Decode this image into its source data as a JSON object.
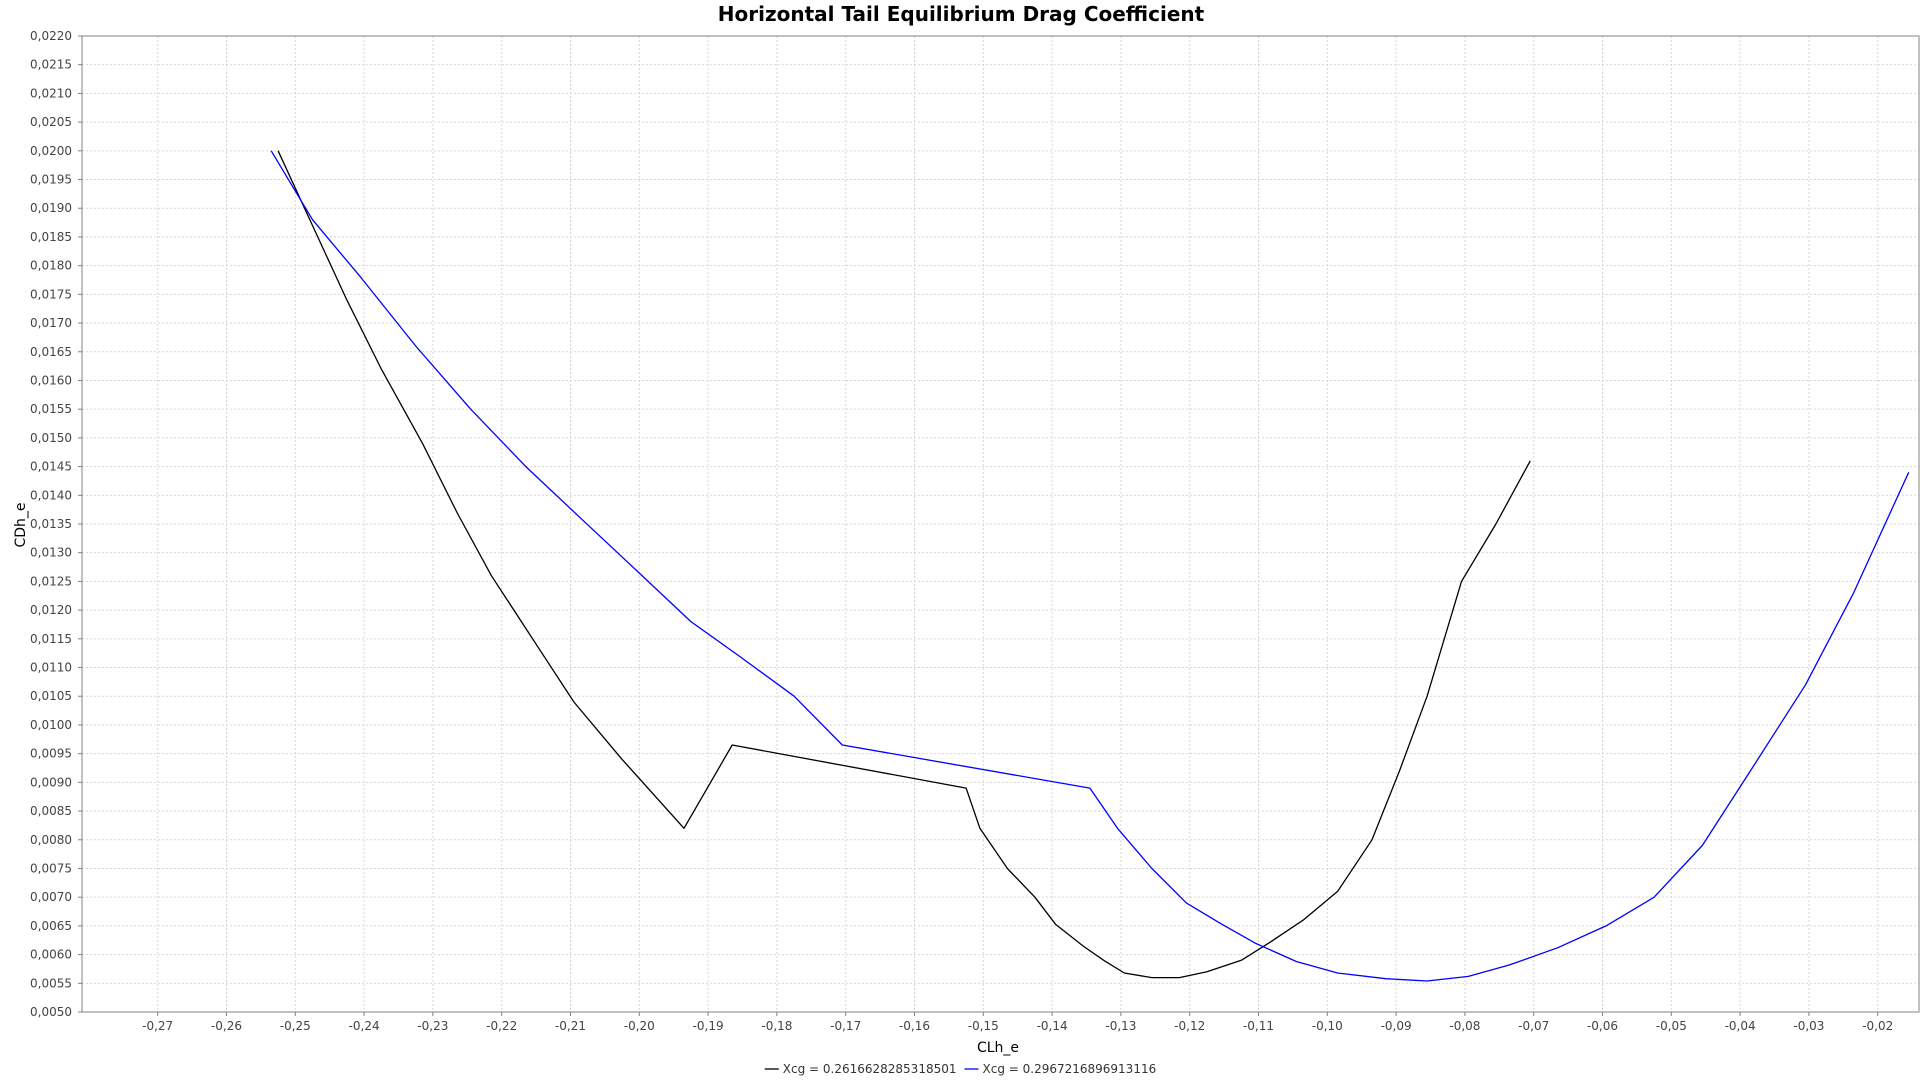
{
  "chart_data": {
    "type": "line",
    "title": "Horizontal Tail Equilibrium Drag Coefficient",
    "xlabel": "CLh_e",
    "ylabel": "CDh_e",
    "xlim": [
      -0.281,
      -0.014
    ],
    "ylim": [
      0.005,
      0.022
    ],
    "grid": true,
    "legend_position": "bottom-center",
    "x_ticks": [
      -0.27,
      -0.26,
      -0.25,
      -0.24,
      -0.23,
      -0.22,
      -0.21,
      -0.2,
      -0.19,
      -0.18,
      -0.17,
      -0.16,
      -0.15,
      -0.14,
      -0.13,
      -0.12,
      -0.11,
      -0.1,
      -0.09,
      -0.08,
      -0.07,
      -0.06,
      -0.05,
      -0.04,
      -0.03,
      -0.02
    ],
    "x_tick_labels": [
      "-0,27",
      "-0,26",
      "-0,25",
      "-0,24",
      "-0,23",
      "-0,22",
      "-0,21",
      "-0,20",
      "-0,19",
      "-0,18",
      "-0,17",
      "-0,16",
      "-0,15",
      "-0,14",
      "-0,13",
      "-0,12",
      "-0,11",
      "-0,10",
      "-0,09",
      "-0,08",
      "-0,07",
      "-0,06",
      "-0,05",
      "-0,04",
      "-0,03",
      "-0,02"
    ],
    "y_ticks": [
      0.005,
      0.0055,
      0.006,
      0.0065,
      0.007,
      0.0075,
      0.008,
      0.0085,
      0.009,
      0.0095,
      0.01,
      0.0105,
      0.011,
      0.0115,
      0.012,
      0.0125,
      0.013,
      0.0135,
      0.014,
      0.0145,
      0.015,
      0.0155,
      0.016,
      0.0165,
      0.017,
      0.0175,
      0.018,
      0.0185,
      0.019,
      0.0195,
      0.02,
      0.0205,
      0.021,
      0.0215,
      0.022
    ],
    "y_tick_labels": [
      "0,0050",
      "0,0055",
      "0,0060",
      "0,0065",
      "0,0070",
      "0,0075",
      "0,0080",
      "0,0085",
      "0,0090",
      "0,0095",
      "0,0100",
      "0,0105",
      "0,0110",
      "0,0115",
      "0,0120",
      "0,0125",
      "0,0130",
      "0,0135",
      "0,0140",
      "0,0145",
      "0,0150",
      "0,0155",
      "0,0160",
      "0,0165",
      "0,0170",
      "0,0175",
      "0,0180",
      "0,0185",
      "0,0190",
      "0,0195",
      "0,0200",
      "0,0205",
      "0,0210",
      "0,0215",
      "0,0220"
    ],
    "series": [
      {
        "name": "Xcg = 0.2616628285318501",
        "color": "#000000",
        "x": [
          -0.2525,
          -0.2475,
          -0.2425,
          -0.2375,
          -0.2315,
          -0.2265,
          -0.2215,
          -0.2155,
          -0.2095,
          -0.2025,
          -0.1935,
          -0.1865,
          -0.1525,
          -0.1505,
          -0.1465,
          -0.1425,
          -0.1395,
          -0.1355,
          -0.1325,
          -0.1295,
          -0.1255,
          -0.1215,
          -0.1175,
          -0.1125,
          -0.1085,
          -0.1035,
          -0.0985,
          -0.0935,
          -0.0895,
          -0.0855,
          -0.0805,
          -0.0755,
          -0.0705
        ],
        "y": [
          0.02,
          0.0187,
          0.0174,
          0.0162,
          0.0149,
          0.0137,
          0.0126,
          0.0115,
          0.0104,
          0.0094,
          0.0082,
          0.00965,
          0.0089,
          0.0082,
          0.0075,
          0.007,
          0.00653,
          0.00615,
          0.0059,
          0.00568,
          0.0056,
          0.0056,
          0.0057,
          0.0059,
          0.0062,
          0.0066,
          0.0071,
          0.008,
          0.0092,
          0.0105,
          0.0125,
          0.0135,
          0.0146
        ]
      },
      {
        "name": "Xcg = 0.2967216896913116",
        "color": "#0000ff",
        "x": [
          -0.2535,
          -0.2475,
          -0.2405,
          -0.2325,
          -0.2245,
          -0.2165,
          -0.2085,
          -0.2005,
          -0.1925,
          -0.1855,
          -0.1775,
          -0.1705,
          -0.1345,
          -0.1305,
          -0.1255,
          -0.1205,
          -0.1155,
          -0.1105,
          -0.1045,
          -0.0985,
          -0.0915,
          -0.0855,
          -0.0795,
          -0.0735,
          -0.0665,
          -0.0595,
          -0.0525,
          -0.0455,
          -0.0385,
          -0.0305,
          -0.0235,
          -0.0155
        ],
        "y": [
          0.02,
          0.0188,
          0.0178,
          0.0166,
          0.0155,
          0.0145,
          0.0136,
          0.0127,
          0.0118,
          0.0112,
          0.0105,
          0.00965,
          0.0089,
          0.0082,
          0.0075,
          0.0069,
          0.00654,
          0.0062,
          0.00588,
          0.00568,
          0.00558,
          0.00554,
          0.00562,
          0.00582,
          0.00612,
          0.0065,
          0.007,
          0.0079,
          0.0092,
          0.0107,
          0.0123,
          0.0144
        ]
      }
    ]
  }
}
